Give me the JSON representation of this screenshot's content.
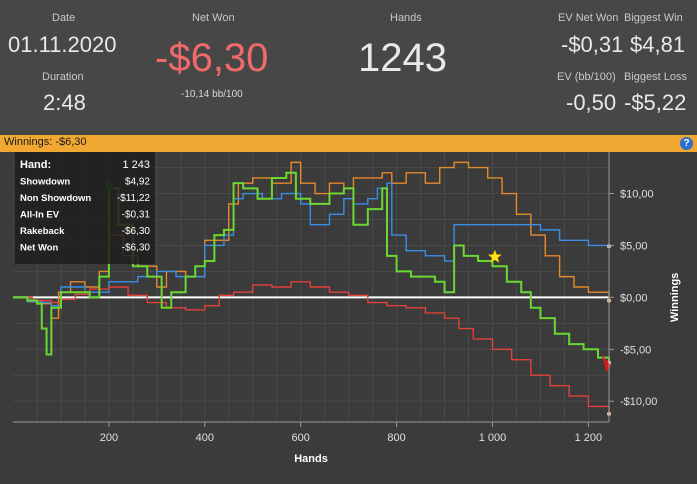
{
  "summary": {
    "date_label": "Date",
    "date_value": "01.11.2020",
    "duration_label": "Duration",
    "duration_value": "2:48",
    "net_won_label": "Net Won",
    "net_won_value": "-$6,30",
    "net_won_bb": "-10,14 bb/100",
    "hands_label": "Hands",
    "hands_value": "1243",
    "ev_net_won_label": "EV Net Won",
    "ev_net_won_value": "-$0,31",
    "biggest_win_label": "Biggest Win",
    "biggest_win_value": "$4,81",
    "ev_bb_label": "EV (bb/100)",
    "ev_bb_value": "-0,50",
    "biggest_loss_label": "Biggest Loss",
    "biggest_loss_value": "-$5,22"
  },
  "winnings_bar": {
    "text": "Winnings: -$6,30",
    "help_glyph": "?"
  },
  "colors": {
    "net_won": "#6ad832",
    "showdown": "#3a8ee6",
    "non_showdown": "#e0413b",
    "all_in_ev": "#e58a2a",
    "negative": "#f06a6a",
    "accent": "#f0a832"
  },
  "tooltip": {
    "rows": [
      {
        "label": "Hand:",
        "value": "1 243"
      },
      {
        "label": "Showdown",
        "value": "$4,92"
      },
      {
        "label": "Non Showdown",
        "value": "-$11,22"
      },
      {
        "label": "All-In EV",
        "value": "-$0,31"
      },
      {
        "label": "Rakeback",
        "value": "-$6,30"
      },
      {
        "label": "Net Won",
        "value": "-$6,30"
      }
    ]
  },
  "chart_data": {
    "type": "line",
    "xlabel": "Hands",
    "ylabel": "Winnings",
    "xlim": [
      0,
      1243
    ],
    "ylim": [
      -12,
      14
    ],
    "x_ticks": [
      200,
      400,
      600,
      800,
      1000,
      1200
    ],
    "x_tick_labels": [
      "200",
      "400",
      "600",
      "800",
      "1 000",
      "1 200"
    ],
    "y_ticks": [
      10,
      5,
      0,
      -5,
      -10
    ],
    "y_tick_labels": [
      "$10,00",
      "$5,00",
      "$0,00",
      "-$5,00",
      "-$10,00"
    ],
    "grid": true,
    "series": [
      {
        "key": "all_in_ev",
        "points": [
          [
            0,
            0
          ],
          [
            30,
            -0.4
          ],
          [
            60,
            -0.6
          ],
          [
            80,
            -2.0
          ],
          [
            95,
            0.5
          ],
          [
            120,
            1.5
          ],
          [
            150,
            1.0
          ],
          [
            180,
            2.5
          ],
          [
            200,
            6.0
          ],
          [
            230,
            4.0
          ],
          [
            260,
            3.0
          ],
          [
            300,
            1.0
          ],
          [
            320,
            2.5
          ],
          [
            360,
            2.0
          ],
          [
            400,
            5.5
          ],
          [
            430,
            5.5
          ],
          [
            450,
            9.0
          ],
          [
            470,
            11.0
          ],
          [
            500,
            11.5
          ],
          [
            540,
            11.0
          ],
          [
            580,
            13.0
          ],
          [
            600,
            11.0
          ],
          [
            630,
            10.0
          ],
          [
            660,
            11.0
          ],
          [
            690,
            10.5
          ],
          [
            710,
            11.5
          ],
          [
            740,
            11.5
          ],
          [
            770,
            12.0
          ],
          [
            790,
            11.0
          ],
          [
            820,
            12.0
          ],
          [
            860,
            11.0
          ],
          [
            890,
            12.5
          ],
          [
            920,
            13.0
          ],
          [
            950,
            12.5
          ],
          [
            990,
            11.5
          ],
          [
            1020,
            10.0
          ],
          [
            1050,
            8.0
          ],
          [
            1080,
            6.0
          ],
          [
            1110,
            4.0
          ],
          [
            1140,
            2.0
          ],
          [
            1170,
            1.0
          ],
          [
            1200,
            0.5
          ],
          [
            1243,
            -0.31
          ]
        ]
      },
      {
        "key": "showdown",
        "points": [
          [
            0,
            0
          ],
          [
            30,
            -0.4
          ],
          [
            60,
            -0.5
          ],
          [
            80,
            -0.8
          ],
          [
            100,
            1.0
          ],
          [
            150,
            0.5
          ],
          [
            200,
            1.5
          ],
          [
            260,
            2.0
          ],
          [
            300,
            2.5
          ],
          [
            340,
            2.0
          ],
          [
            400,
            5.0
          ],
          [
            440,
            6.0
          ],
          [
            460,
            9.5
          ],
          [
            480,
            10.0
          ],
          [
            520,
            9.5
          ],
          [
            560,
            10.0
          ],
          [
            600,
            9.0
          ],
          [
            620,
            7.0
          ],
          [
            660,
            8.0
          ],
          [
            690,
            9.5
          ],
          [
            710,
            9.0
          ],
          [
            740,
            9.5
          ],
          [
            760,
            10.5
          ],
          [
            780,
            11.0
          ],
          [
            790,
            6.0
          ],
          [
            820,
            4.5
          ],
          [
            860,
            4.0
          ],
          [
            900,
            3.5
          ],
          [
            920,
            7.0
          ],
          [
            960,
            7.0
          ],
          [
            1000,
            7.0
          ],
          [
            1060,
            7.0
          ],
          [
            1100,
            6.5
          ],
          [
            1140,
            5.5
          ],
          [
            1200,
            5.0
          ],
          [
            1243,
            4.92
          ]
        ]
      },
      {
        "key": "non_showdown",
        "points": [
          [
            0,
            0
          ],
          [
            40,
            -0.3
          ],
          [
            80,
            -0.5
          ],
          [
            100,
            -0.2
          ],
          [
            130,
            0.3
          ],
          [
            160,
            0.8
          ],
          [
            200,
            1.0
          ],
          [
            240,
            0.2
          ],
          [
            280,
            -0.5
          ],
          [
            320,
            -1.0
          ],
          [
            360,
            -1.2
          ],
          [
            400,
            -0.8
          ],
          [
            430,
            0.2
          ],
          [
            460,
            0.5
          ],
          [
            500,
            1.2
          ],
          [
            540,
            1.0
          ],
          [
            580,
            1.5
          ],
          [
            620,
            1.0
          ],
          [
            660,
            0.5
          ],
          [
            700,
            0.2
          ],
          [
            740,
            -0.5
          ],
          [
            780,
            -0.8
          ],
          [
            820,
            -1.0
          ],
          [
            860,
            -1.5
          ],
          [
            900,
            -2.0
          ],
          [
            930,
            -3.0
          ],
          [
            960,
            -4.0
          ],
          [
            1000,
            -5.0
          ],
          [
            1040,
            -6.0
          ],
          [
            1080,
            -7.5
          ],
          [
            1120,
            -8.5
          ],
          [
            1160,
            -9.5
          ],
          [
            1200,
            -10.5
          ],
          [
            1243,
            -11.22
          ]
        ]
      },
      {
        "key": "net_won",
        "points": [
          [
            0,
            0
          ],
          [
            30,
            -0.3
          ],
          [
            50,
            -0.6
          ],
          [
            60,
            -3.0
          ],
          [
            70,
            -5.5
          ],
          [
            80,
            -1.0
          ],
          [
            100,
            0.5
          ],
          [
            130,
            0.5
          ],
          [
            160,
            0.0
          ],
          [
            180,
            2.0
          ],
          [
            200,
            10.5
          ],
          [
            220,
            7.0
          ],
          [
            250,
            3.0
          ],
          [
            280,
            2.0
          ],
          [
            310,
            -1.0
          ],
          [
            330,
            0.5
          ],
          [
            360,
            2.0
          ],
          [
            380,
            3.0
          ],
          [
            400,
            3.5
          ],
          [
            420,
            6.0
          ],
          [
            440,
            6.5
          ],
          [
            460,
            11.0
          ],
          [
            480,
            10.5
          ],
          [
            510,
            9.5
          ],
          [
            540,
            11.5
          ],
          [
            570,
            12.0
          ],
          [
            590,
            9.5
          ],
          [
            620,
            9.0
          ],
          [
            660,
            10.0
          ],
          [
            690,
            10.5
          ],
          [
            710,
            7.0
          ],
          [
            740,
            8.5
          ],
          [
            770,
            10.5
          ],
          [
            780,
            4.0
          ],
          [
            800,
            2.5
          ],
          [
            830,
            2.0
          ],
          [
            860,
            2.0
          ],
          [
            880,
            1.5
          ],
          [
            900,
            0.5
          ],
          [
            920,
            5.0
          ],
          [
            940,
            4.0
          ],
          [
            970,
            3.5
          ],
          [
            1000,
            3.0
          ],
          [
            1030,
            1.5
          ],
          [
            1060,
            0.5
          ],
          [
            1080,
            -1.0
          ],
          [
            1100,
            -2.0
          ],
          [
            1130,
            -3.5
          ],
          [
            1160,
            -4.5
          ],
          [
            1190,
            -5.0
          ],
          [
            1220,
            -5.8
          ],
          [
            1243,
            -6.3
          ]
        ]
      }
    ]
  }
}
